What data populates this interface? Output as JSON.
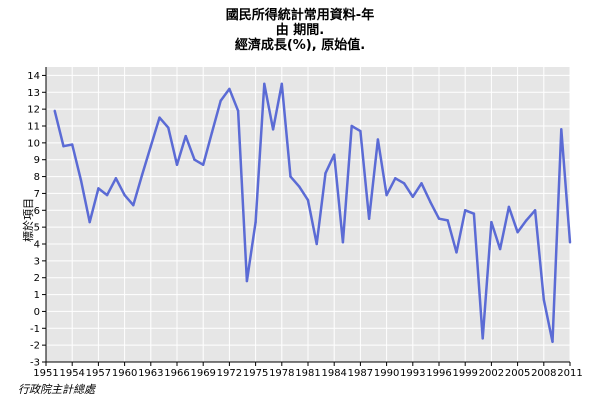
{
  "chart_data": {
    "type": "line",
    "title": [
      "國民所得統計常用資料-年",
      "由 期間.",
      "經濟成長(%), 原始值."
    ],
    "ylabel": "標於項目",
    "xlabel": "",
    "source": "行政院主計總處",
    "ylim": [
      -3,
      14.5
    ],
    "xlim": [
      1951,
      2011
    ],
    "yticks": [
      -3,
      -2,
      -1,
      0,
      1,
      2,
      3,
      4,
      5,
      6,
      7,
      8,
      9,
      10,
      11,
      12,
      13,
      14
    ],
    "xticks": [
      1951,
      1954,
      1957,
      1960,
      1963,
      1966,
      1969,
      1972,
      1975,
      1978,
      1981,
      1984,
      1987,
      1990,
      1993,
      1996,
      1999,
      2002,
      2005,
      2008,
      2011
    ],
    "grid": true,
    "line_color": "#5b6bd5",
    "plot_bg": "#e6e6e6",
    "grid_color": "#ffffff",
    "x": [
      1952,
      1953,
      1954,
      1955,
      1956,
      1957,
      1958,
      1959,
      1960,
      1961,
      1962,
      1963,
      1964,
      1965,
      1966,
      1967,
      1968,
      1969,
      1970,
      1971,
      1972,
      1973,
      1974,
      1975,
      1976,
      1977,
      1978,
      1979,
      1980,
      1981,
      1982,
      1983,
      1984,
      1985,
      1986,
      1987,
      1988,
      1989,
      1990,
      1991,
      1992,
      1993,
      1994,
      1995,
      1996,
      1997,
      1998,
      1999,
      2000,
      2001,
      2002,
      2003,
      2004,
      2005,
      2006,
      2007,
      2008,
      2009,
      2010,
      2011
    ],
    "values": [
      11.9,
      9.8,
      9.9,
      7.8,
      5.3,
      7.3,
      6.9,
      7.9,
      6.9,
      6.3,
      8.1,
      9.8,
      11.5,
      10.9,
      8.7,
      10.4,
      9.0,
      8.7,
      10.6,
      12.5,
      13.2,
      11.9,
      1.8,
      5.3,
      13.5,
      10.8,
      13.5,
      8.0,
      7.4,
      6.6,
      4.0,
      8.2,
      9.3,
      4.1,
      11.0,
      10.7,
      5.5,
      10.2,
      6.9,
      7.9,
      7.6,
      6.8,
      7.6,
      6.5,
      5.5,
      5.4,
      3.5,
      6.0,
      5.8,
      -1.6,
      5.3,
      3.7,
      6.2,
      4.7,
      5.4,
      6.0,
      0.7,
      -1.8,
      10.8,
      4.1
    ]
  }
}
